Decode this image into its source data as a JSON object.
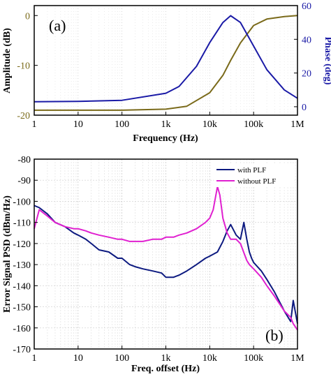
{
  "chart_data": [
    {
      "type": "line",
      "panel_label": "(a)",
      "xlabel": "Frequency (Hz)",
      "ylabel": "Amplitude (dB)",
      "y2label": "Phase (deg)",
      "xscale": "log",
      "xlim": [
        1,
        1000000
      ],
      "ylim": [
        -20,
        2
      ],
      "y2lim": [
        -5,
        60
      ],
      "xticks": [
        "1",
        "10",
        "100",
        "1k",
        "10k",
        "100k",
        "1M"
      ],
      "yticks": [
        "0",
        "-10",
        "-20"
      ],
      "y2ticks": [
        "0",
        "20",
        "40",
        "60"
      ],
      "colors": {
        "amplitude": "#7a6a1a",
        "phase": "#1a1aa6"
      },
      "series": [
        {
          "axis": "left",
          "x": [
            1,
            10,
            100,
            1000,
            3000,
            10000,
            20000,
            30000,
            50000,
            100000,
            200000,
            500000,
            1000000
          ],
          "values": [
            -19,
            -19,
            -19,
            -18.8,
            -18.2,
            -15.5,
            -12.0,
            -9.0,
            -5.5,
            -2.0,
            -0.7,
            -0.2,
            0
          ]
        },
        {
          "axis": "right",
          "x": [
            1,
            10,
            100,
            1000,
            2000,
            5000,
            10000,
            20000,
            30000,
            50000,
            100000,
            200000,
            500000,
            1000000
          ],
          "values": [
            3.0,
            3.2,
            3.8,
            8.0,
            12.0,
            24.0,
            38.0,
            50.0,
            54.0,
            50.0,
            36.0,
            22.0,
            10.0,
            5.0
          ]
        }
      ]
    },
    {
      "type": "line",
      "panel_label": "(b)",
      "xlabel": "Freq. offset (Hz)",
      "ylabel": "Error Signal PSD (dBm/Hz)",
      "xscale": "log",
      "xlim": [
        1,
        1000000
      ],
      "ylim": [
        -170,
        -80
      ],
      "xticks": [
        "1",
        "10",
        "100",
        "1k",
        "10k",
        "100k",
        "1M"
      ],
      "yticks": [
        "-80",
        "-90",
        "-100",
        "-110",
        "-120",
        "-130",
        "-140",
        "-150",
        "-160",
        "-170"
      ],
      "legend_position": "top-right",
      "series": [
        {
          "name": "with PLF",
          "color": "#0d1a80",
          "x": [
            1,
            1.3,
            2,
            3,
            5,
            8,
            10,
            15,
            20,
            30,
            50,
            80,
            100,
            150,
            200,
            300,
            500,
            800,
            1000,
            1500,
            2000,
            3000,
            5000,
            8000,
            10000,
            15000,
            20000,
            25000,
            30000,
            40000,
            50000,
            60000,
            70000,
            80000,
            90000,
            100000,
            150000,
            200000,
            300000,
            500000,
            700000,
            800000,
            1000000
          ],
          "values": [
            -102,
            -103,
            -106,
            -110,
            -112,
            -115,
            -116,
            -118,
            -120,
            -123,
            -124,
            -127,
            -127,
            -130,
            -131,
            -132,
            -133,
            -134,
            -136,
            -136,
            -135,
            -133,
            -130,
            -127,
            -126,
            -124,
            -119,
            -114,
            -111,
            -116,
            -118,
            -110,
            -118,
            -124,
            -127,
            -129,
            -133,
            -137,
            -143,
            -152,
            -157,
            -147,
            -158
          ]
        },
        {
          "name": "without PLF",
          "color": "#e020d0",
          "x": [
            1,
            1.3,
            2,
            3,
            5,
            8,
            10,
            15,
            20,
            30,
            50,
            80,
            100,
            150,
            200,
            300,
            500,
            800,
            1000,
            1500,
            2000,
            3000,
            5000,
            8000,
            10000,
            12000,
            15000,
            17000,
            20000,
            25000,
            30000,
            40000,
            50000,
            70000,
            80000,
            100000,
            150000,
            200000,
            300000,
            500000,
            700000,
            800000,
            1000000
          ],
          "values": [
            -113,
            -104,
            -107,
            -110,
            -112,
            -113,
            -113,
            -114,
            -115,
            -116,
            -117,
            -118,
            -118,
            -119,
            -119,
            -119,
            -118,
            -118,
            -117,
            -117,
            -116,
            -115,
            -113,
            -110,
            -108,
            -104,
            -93,
            -97,
            -108,
            -115,
            -118,
            -118,
            -120,
            -128,
            -130,
            -132,
            -136,
            -140,
            -145,
            -152,
            -155,
            -158,
            -161
          ]
        }
      ]
    }
  ]
}
